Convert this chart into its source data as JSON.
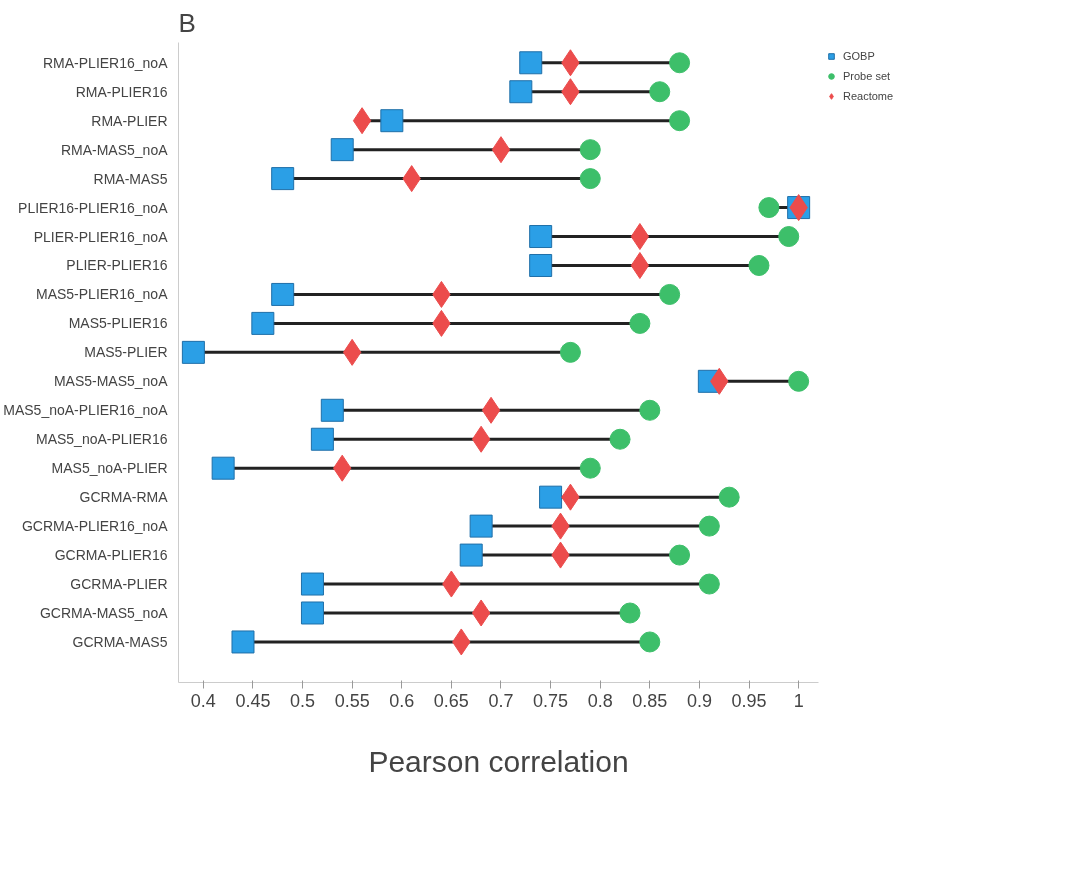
{
  "chart_data": {
    "type": "scatter",
    "orientation": "horizontal",
    "title": "B",
    "xlabel": "Pearson correlation",
    "categories": [
      "RMA-PLIER16_noA",
      "RMA-PLIER16",
      "RMA-PLIER",
      "RMA-MAS5_noA",
      "RMA-MAS5",
      "PLIER16-PLIER16_noA",
      "PLIER-PLIER16_noA",
      "PLIER-PLIER16",
      "MAS5-PLIER16_noA",
      "MAS5-PLIER16",
      "MAS5-PLIER",
      "MAS5-MAS5_noA",
      "MAS5_noA-PLIER16_noA",
      "MAS5_noA-PLIER16",
      "MAS5_noA-PLIER",
      "GCRMA-RMA",
      "GCRMA-PLIER16_noA",
      "GCRMA-PLIER16",
      "GCRMA-PLIER",
      "GCRMA-MAS5_noA",
      "GCRMA-MAS5"
    ],
    "series": [
      {
        "name": "GOBP",
        "color": "#2b9fe6",
        "marker": "square",
        "values": [
          0.73,
          0.72,
          0.59,
          0.54,
          0.48,
          1.0,
          0.74,
          0.74,
          0.48,
          0.46,
          0.39,
          0.91,
          0.53,
          0.52,
          0.42,
          0.75,
          0.68,
          0.67,
          0.51,
          0.51,
          0.44
        ]
      },
      {
        "name": "Probe set",
        "color": "#3dbf6a",
        "marker": "circle",
        "values": [
          0.88,
          0.86,
          0.88,
          0.79,
          0.79,
          0.97,
          0.99,
          0.96,
          0.87,
          0.84,
          0.77,
          1.0,
          0.85,
          0.82,
          0.79,
          0.93,
          0.91,
          0.88,
          0.91,
          0.83,
          0.85
        ]
      },
      {
        "name": "Reactome",
        "color": "#ec4c4c",
        "marker": "diamond",
        "values": [
          0.77,
          0.77,
          0.56,
          0.7,
          0.61,
          1.0,
          0.84,
          0.84,
          0.64,
          0.64,
          0.55,
          0.92,
          0.69,
          0.68,
          0.54,
          0.77,
          0.76,
          0.76,
          0.65,
          0.68,
          0.66
        ]
      }
    ],
    "xlim": [
      0.375,
      1.02
    ],
    "xticks": [
      0.4,
      0.45,
      0.5,
      0.55,
      0.6,
      0.65,
      0.7,
      0.75,
      0.8,
      0.85,
      0.9,
      0.95,
      1
    ],
    "grid": false,
    "legend": "right"
  }
}
